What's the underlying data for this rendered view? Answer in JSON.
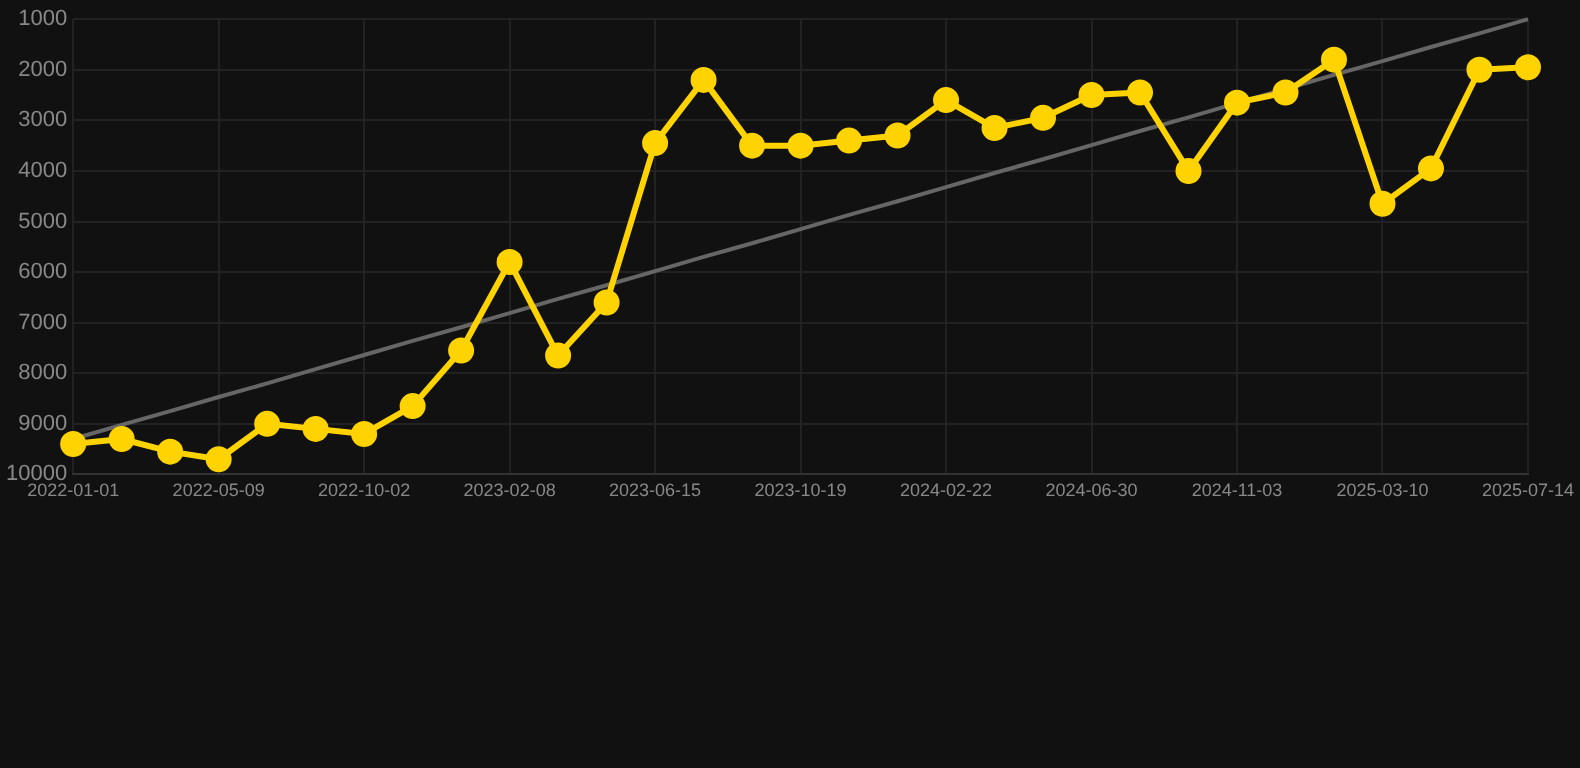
{
  "chart_data": {
    "type": "line",
    "categories": [
      "2022-01-01",
      null,
      null,
      "2022-05-09",
      null,
      null,
      "2022-10-02",
      null,
      null,
      "2023-02-08",
      null,
      null,
      "2023-06-15",
      null,
      null,
      "2023-10-19",
      null,
      null,
      "2024-02-22",
      null,
      null,
      "2024-06-30",
      null,
      null,
      "2024-11-03",
      null,
      null,
      "2025-03-10",
      null,
      null,
      "2025-07-14"
    ],
    "series": [
      {
        "color": "#ffd300",
        "values": [
          9400,
          9300,
          9550,
          9700,
          9000,
          9100,
          9200,
          8650,
          7550,
          5800,
          7650,
          6600,
          3450,
          2200,
          3500,
          3500,
          3400,
          3300,
          2600,
          3150,
          2950,
          2500,
          2450,
          4000,
          2650,
          2450,
          1800,
          4650,
          3950,
          2000,
          1950
        ]
      },
      {
        "type": "line",
        "color": "#666666",
        "marker": "none",
        "values": [
          9300,
          9020,
          8750,
          8470,
          8200,
          7920,
          7640,
          7360,
          7090,
          6810,
          6530,
          6260,
          5980,
          5700,
          5430,
          5150,
          4870,
          4600,
          4320,
          4040,
          3770,
          3490,
          3210,
          2940,
          2660,
          2380,
          2100,
          1830,
          1550,
          1280,
          1000
        ]
      }
    ],
    "ylim": [
      10000,
      1000
    ],
    "yticks": [
      1000,
      2000,
      3000,
      4000,
      5000,
      6000,
      7000,
      8000,
      9000,
      10000
    ],
    "grid": true,
    "legend": false,
    "marker": "circle",
    "line_style": "solid"
  }
}
